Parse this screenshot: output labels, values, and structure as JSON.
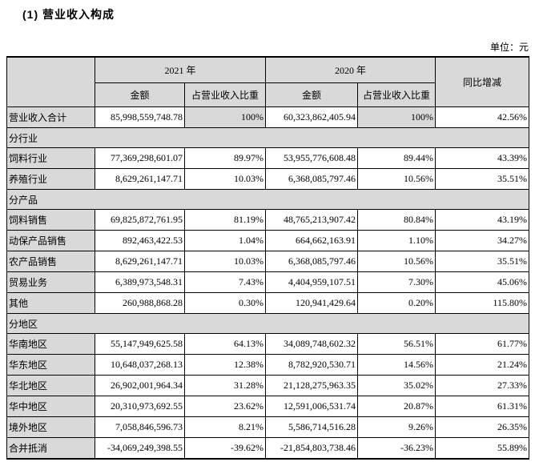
{
  "page": {
    "title": "(1) 营业收入构成",
    "unit_label": "单位：元"
  },
  "colors": {
    "shaded_cell_bg": "#d9d9d9",
    "border": "#000000",
    "text": "#000000"
  },
  "table": {
    "header": {
      "col_2021": "2021 年",
      "col_2020": "2020 年",
      "col_yoy": "同比增减",
      "amount": "金额",
      "share": "占营业收入比重"
    },
    "rows": [
      {
        "type": "data",
        "label": "营业收入合计",
        "amount_2021": "85,998,559,748.78",
        "share_2021": "100%",
        "amount_2020": "60,323,862,405.94",
        "share_2020": "100%",
        "yoy": "42.56%",
        "shade_share": true
      },
      {
        "type": "section",
        "label": "分行业"
      },
      {
        "type": "data",
        "label": "饲料行业",
        "amount_2021": "77,369,298,601.07",
        "share_2021": "89.97%",
        "amount_2020": "53,955,776,608.48",
        "share_2020": "89.44%",
        "yoy": "43.39%"
      },
      {
        "type": "data",
        "label": "养殖行业",
        "amount_2021": "8,629,261,147.71",
        "share_2021": "10.03%",
        "amount_2020": "6,368,085,797.46",
        "share_2020": "10.56%",
        "yoy": "35.51%"
      },
      {
        "type": "section",
        "label": "分产品"
      },
      {
        "type": "data",
        "label": "饲料销售",
        "amount_2021": "69,825,872,761.95",
        "share_2021": "81.19%",
        "amount_2020": "48,765,213,907.42",
        "share_2020": "80.84%",
        "yoy": "43.19%"
      },
      {
        "type": "data",
        "label": "动保产品销售",
        "amount_2021": "892,463,422.53",
        "share_2021": "1.04%",
        "amount_2020": "664,662,163.91",
        "share_2020": "1.10%",
        "yoy": "34.27%"
      },
      {
        "type": "data",
        "label": "农产品销售",
        "amount_2021": "8,629,261,147.71",
        "share_2021": "10.03%",
        "amount_2020": "6,368,085,797.46",
        "share_2020": "10.56%",
        "yoy": "35.51%"
      },
      {
        "type": "data",
        "label": "贸易业务",
        "amount_2021": "6,389,973,548.31",
        "share_2021": "7.43%",
        "amount_2020": "4,404,959,107.51",
        "share_2020": "7.30%",
        "yoy": "45.06%"
      },
      {
        "type": "data",
        "label": "其他",
        "amount_2021": "260,988,868.28",
        "share_2021": "0.30%",
        "amount_2020": "120,941,429.64",
        "share_2020": "0.20%",
        "yoy": "115.80%"
      },
      {
        "type": "section",
        "label": "分地区"
      },
      {
        "type": "data",
        "label": "华南地区",
        "amount_2021": "55,147,949,625.58",
        "share_2021": "64.13%",
        "amount_2020": "34,089,748,602.32",
        "share_2020": "56.51%",
        "yoy": "61.77%"
      },
      {
        "type": "data",
        "label": "华东地区",
        "amount_2021": "10,648,037,268.13",
        "share_2021": "12.38%",
        "amount_2020": "8,782,920,530.71",
        "share_2020": "14.56%",
        "yoy": "21.24%"
      },
      {
        "type": "data",
        "label": "华北地区",
        "amount_2021": "26,902,001,964.34",
        "share_2021": "31.28%",
        "amount_2020": "21,128,275,963.35",
        "share_2020": "35.02%",
        "yoy": "27.33%"
      },
      {
        "type": "data",
        "label": "华中地区",
        "amount_2021": "20,310,973,692.55",
        "share_2021": "23.62%",
        "amount_2020": "12,591,006,531.74",
        "share_2020": "20.87%",
        "yoy": "61.31%"
      },
      {
        "type": "data",
        "label": "境外地区",
        "amount_2021": "7,058,846,596.73",
        "share_2021": "8.21%",
        "amount_2020": "5,586,714,516.28",
        "share_2020": "9.26%",
        "yoy": "26.35%"
      },
      {
        "type": "data",
        "label": "合并抵消",
        "amount_2021": "-34,069,249,398.55",
        "share_2021": "-39.62%",
        "amount_2020": "-21,854,803,738.46",
        "share_2020": "-36.23%",
        "yoy": "55.89%"
      }
    ]
  }
}
